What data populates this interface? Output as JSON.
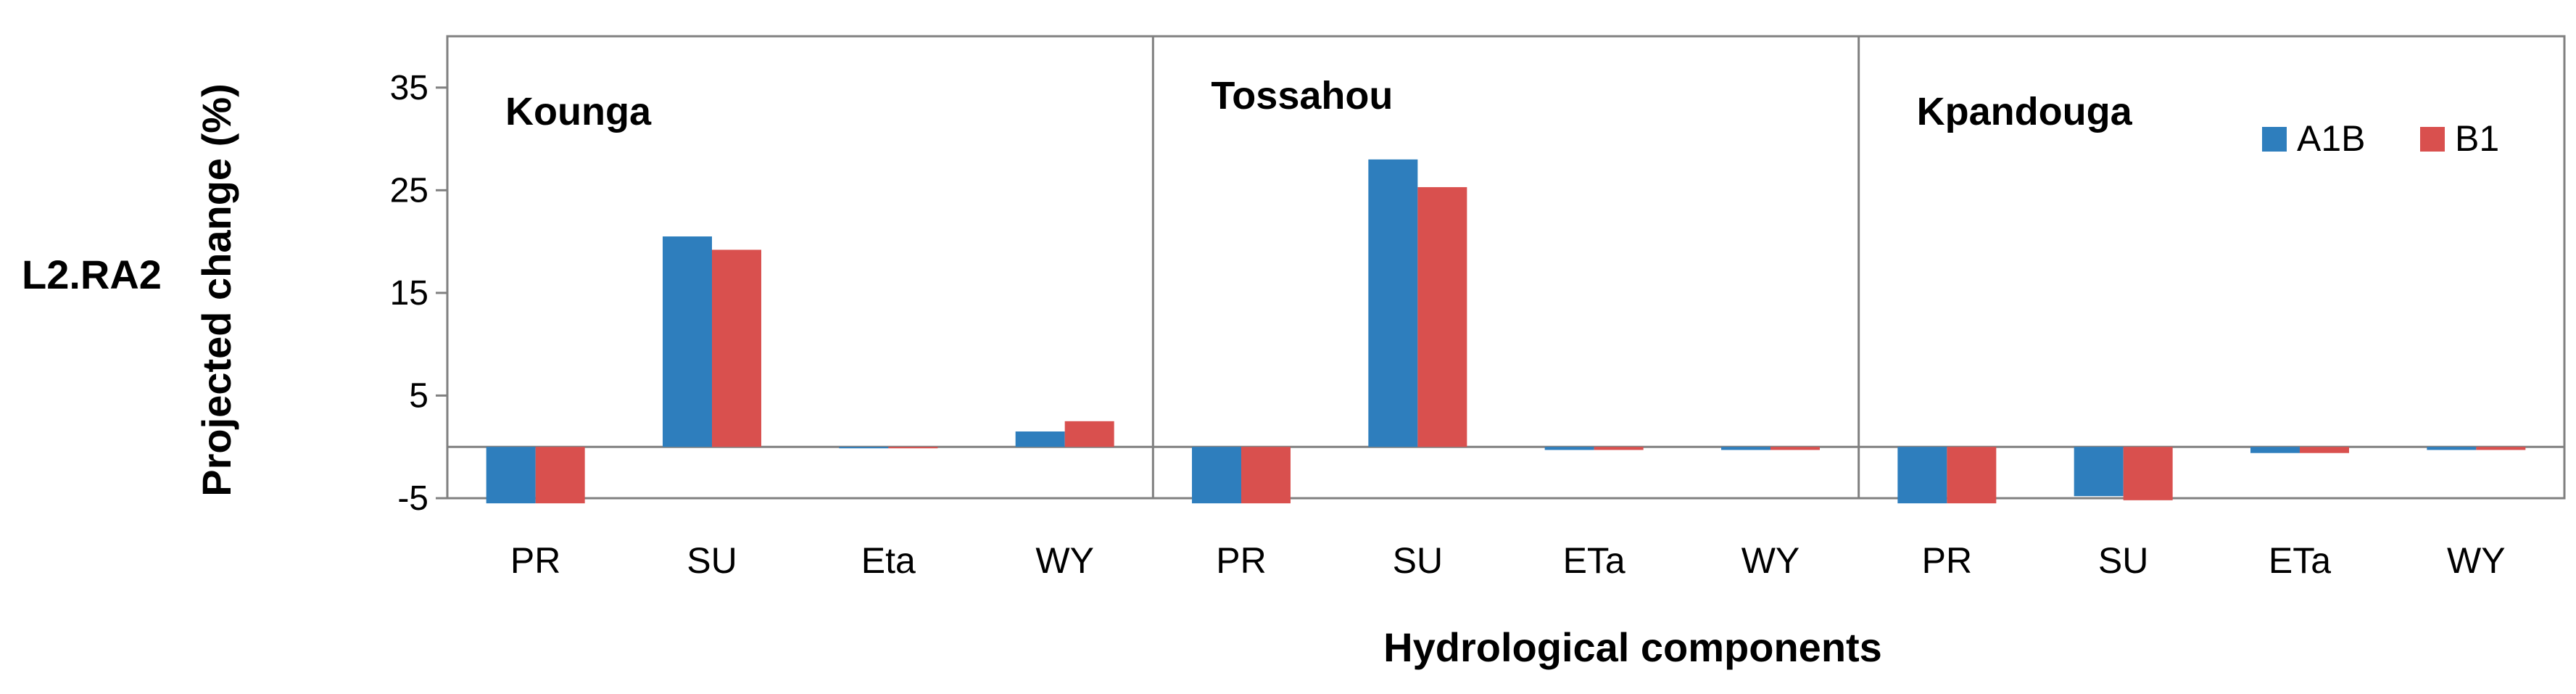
{
  "row_label": "L2.RA2",
  "chart_data": {
    "type": "bar",
    "ylabel": "Projected change (%)",
    "xlabel": "Hydrological components",
    "ylim": [
      -5,
      40
    ],
    "yticks": [
      35,
      25,
      15,
      5,
      -5
    ],
    "legend": {
      "placement": "top-right",
      "entries": [
        {
          "name": "A1B",
          "color": "#2E7EBD"
        },
        {
          "name": "B1",
          "color": "#D9504E"
        }
      ]
    },
    "panels": [
      {
        "title": "Kounga",
        "categories": [
          "PR",
          "SU",
          "Eta",
          "WY"
        ],
        "series": [
          {
            "name": "A1B",
            "values": [
              -5.5,
              20.5,
              0,
              1.5
            ]
          },
          {
            "name": "B1",
            "values": [
              -5.5,
              19.2,
              0,
              2.5
            ]
          }
        ]
      },
      {
        "title": "Tossahou",
        "categories": [
          "PR",
          "SU",
          "ETa",
          "WY"
        ],
        "series": [
          {
            "name": "A1B",
            "values": [
              -5.5,
              28.0,
              -0.3,
              -0.3
            ]
          },
          {
            "name": "B1",
            "values": [
              -5.5,
              25.3,
              -0.3,
              -0.3
            ]
          }
        ]
      },
      {
        "title": "Kpandouga",
        "categories": [
          "PR",
          "SU",
          "ETa",
          "WY"
        ],
        "series": [
          {
            "name": "A1B",
            "values": [
              -5.5,
              -4.8,
              -0.6,
              -0.3
            ]
          },
          {
            "name": "B1",
            "values": [
              -5.5,
              -5.2,
              -0.6,
              -0.3
            ]
          }
        ]
      }
    ]
  }
}
